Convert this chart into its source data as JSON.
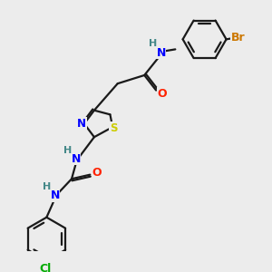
{
  "background_color": "#ececec",
  "bond_color": "#1a1a1a",
  "atom_colors": {
    "N": "#0000ff",
    "S": "#cccc00",
    "O": "#ff2200",
    "Br": "#cc7700",
    "Cl": "#00aa00",
    "H": "#448888",
    "C": "#1a1a1a"
  },
  "figsize": [
    3.0,
    3.0
  ],
  "dpi": 100,
  "lw": 1.6,
  "fontsize": 8.5
}
